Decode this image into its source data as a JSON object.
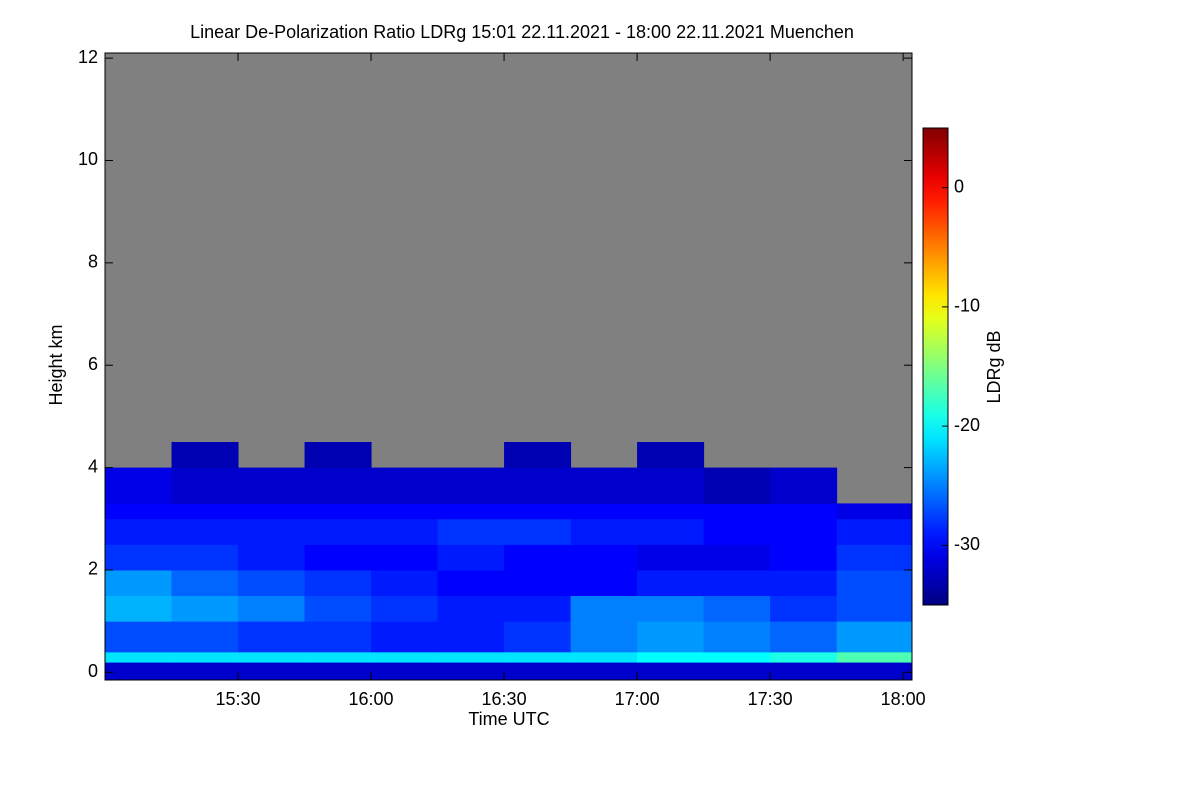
{
  "chart_data": {
    "type": "heatmap",
    "title": "Linear De-Polarization Ratio LDRg   15:01 22.11.2021 - 18:00 22.11.2021 Muenchen",
    "xlabel": "Time UTC",
    "ylabel": "Height km",
    "colorbar_label": "LDRg dB",
    "colormap": "jet",
    "missing_color": "#808080",
    "xlim": [
      900,
      1082
    ],
    "xticks": [
      {
        "value": 930,
        "label": "15:30"
      },
      {
        "value": 960,
        "label": "16:00"
      },
      {
        "value": 990,
        "label": "16:30"
      },
      {
        "value": 1020,
        "label": "17:00"
      },
      {
        "value": 1050,
        "label": "17:30"
      },
      {
        "value": 1080,
        "label": "18:00"
      }
    ],
    "ylim": [
      -0.15,
      12.1
    ],
    "yticks": [
      0,
      2,
      4,
      6,
      8,
      10,
      12
    ],
    "zlim": [
      -35,
      5
    ],
    "zticks": [
      0,
      -10,
      -20,
      -30
    ],
    "x_edges": [
      900,
      915,
      930,
      945,
      960,
      975,
      990,
      1005,
      1020,
      1035,
      1050,
      1065,
      1082
    ],
    "y_edges": [
      -0.15,
      0.2,
      0.4,
      1,
      1.5,
      2,
      2.5,
      3,
      3.3,
      4,
      4.5
    ],
    "z": [
      [
        -32,
        -32,
        -32,
        -32,
        -32,
        -32,
        -32,
        -32,
        -32,
        -32,
        -32,
        -32
      ],
      [
        -21,
        -21,
        -21,
        -21,
        -21,
        -21,
        -21,
        -21,
        -20,
        -20,
        -19,
        -17
      ],
      [
        -27,
        -27,
        -28,
        -28,
        -29,
        -29,
        -28,
        -25,
        -24,
        -25,
        -26,
        -24
      ],
      [
        -23,
        -24,
        -25,
        -27,
        -28,
        -29,
        -29,
        -25,
        -25,
        -26,
        -28,
        -27
      ],
      [
        -24,
        -26,
        -27,
        -28,
        -29,
        -30,
        -30,
        -30,
        -29,
        -29,
        -29,
        -27
      ],
      [
        -28,
        -28,
        -29,
        -30,
        -30,
        -29,
        -30,
        -30,
        -31,
        -31,
        -30,
        -28
      ],
      [
        -29,
        -29,
        -29,
        -29,
        -29,
        -28,
        -28,
        -29,
        -29,
        -30,
        -30,
        -29
      ],
      [
        -30,
        -30,
        -30,
        -30,
        -30,
        -30,
        -30,
        -30,
        -30,
        -30,
        -30,
        -31
      ],
      [
        -31,
        -32,
        -32,
        -32,
        -32,
        -32,
        -32,
        -32,
        -32,
        -33,
        -32,
        null
      ],
      [
        null,
        -33,
        null,
        -33,
        null,
        null,
        -33,
        null,
        -33,
        null,
        null,
        null
      ]
    ]
  }
}
